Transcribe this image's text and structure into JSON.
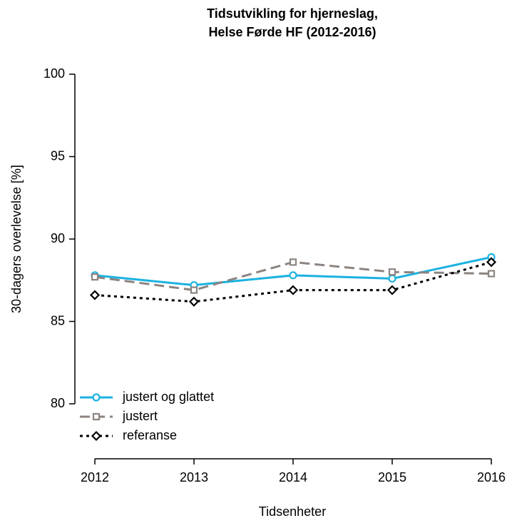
{
  "chart_data": {
    "type": "line",
    "title": [
      "Tidsutvikling for hjerneslag,",
      "Helse Førde HF (2012-2016)"
    ],
    "x_label": "Tidsenheter",
    "y_label": "30-dagers overlevelse [%]",
    "x": [
      2012,
      2013,
      2014,
      2015,
      2016
    ],
    "xlim": [
      2012,
      2016
    ],
    "xticks": [
      2012,
      2013,
      2014,
      2015,
      2016
    ],
    "ylim": [
      80,
      100
    ],
    "yticks": [
      80,
      85,
      90,
      95,
      100
    ],
    "legend": "bottomleft",
    "series": [
      {
        "name": "justert og glattet",
        "color": "#1ab2e0",
        "marker": "circle",
        "linestyle": "solid",
        "values": [
          87.8,
          87.2,
          87.8,
          87.6,
          88.9
        ]
      },
      {
        "name": "justert",
        "color": "#8c8480",
        "marker": "square",
        "linestyle": "dashed",
        "values": [
          87.7,
          86.9,
          88.6,
          88.0,
          87.9
        ]
      },
      {
        "name": "referanse",
        "color": "#000000",
        "marker": "diamond",
        "linestyle": "dotted",
        "values": [
          86.6,
          86.2,
          86.9,
          86.9,
          88.6
        ]
      }
    ]
  }
}
